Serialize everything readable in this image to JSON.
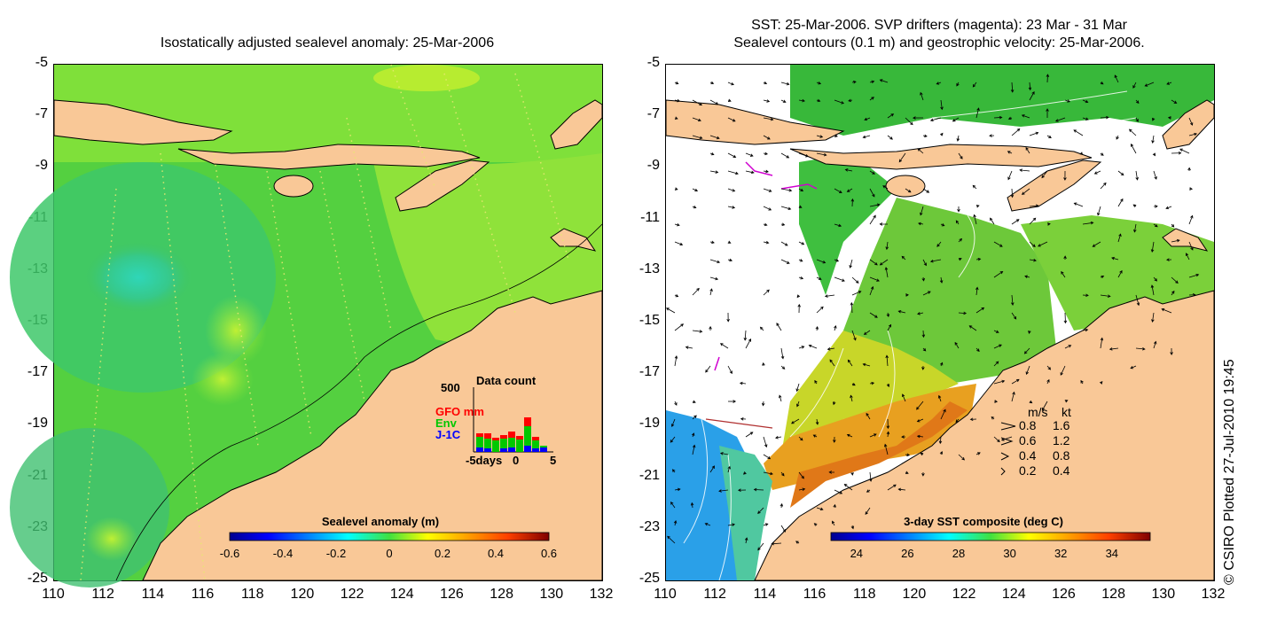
{
  "left_panel": {
    "title": "Isostatically adjusted sealevel anomaly: 25-Mar-2006",
    "colorbar": {
      "label": "Sealevel anomaly (m)",
      "ticks": [
        "-0.6",
        "-0.4",
        "-0.2",
        "0",
        "0.2",
        "0.4",
        "0.6"
      ]
    },
    "data_count": {
      "title": "Data count",
      "ymax": "500",
      "legend": [
        {
          "name": "GFO mm",
          "color": "#ff0000"
        },
        {
          "name": "Env",
          "color": "#00c800"
        },
        {
          "name": "J-1C",
          "color": "#0000ff"
        }
      ],
      "xlabels": [
        "-5days",
        "0",
        "5"
      ]
    }
  },
  "right_panel": {
    "title_line1": "SST: 25-Mar-2006. SVP drifters (magenta): 23 Mar - 31 Mar",
    "title_line2": "Sealevel contours (0.1 m) and geostrophic velocity: 25-Mar-2006.",
    "colorbar": {
      "label": "3-day SST composite (deg C)",
      "ticks": [
        "24",
        "26",
        "28",
        "30",
        "32",
        "34"
      ]
    },
    "velocity_legend": {
      "header_ms": "m/s",
      "header_kt": "kt",
      "rows": [
        {
          "ms": "0.8",
          "kt": "1.6"
        },
        {
          "ms": "0.6",
          "kt": "1.2"
        },
        {
          "ms": "0.4",
          "kt": "0.8"
        },
        {
          "ms": "0.2",
          "kt": "0.4"
        }
      ]
    }
  },
  "axes": {
    "lat_labels": [
      "-5",
      "-7",
      "-9",
      "-11",
      "-13",
      "-15",
      "-17",
      "-19",
      "-21",
      "-23",
      "-25"
    ],
    "lon_labels": [
      "110",
      "112",
      "114",
      "116",
      "118",
      "120",
      "122",
      "124",
      "126",
      "128",
      "130",
      "132"
    ],
    "lat_range": [
      -25,
      -5
    ],
    "lon_range": [
      110,
      132
    ]
  },
  "credit": "© CSIRO Plotted 27-Jul-2010 19:45",
  "colors": {
    "land": "#f9c897",
    "sea_green": "#5ad43c",
    "sst_orange": "#e87a14"
  }
}
